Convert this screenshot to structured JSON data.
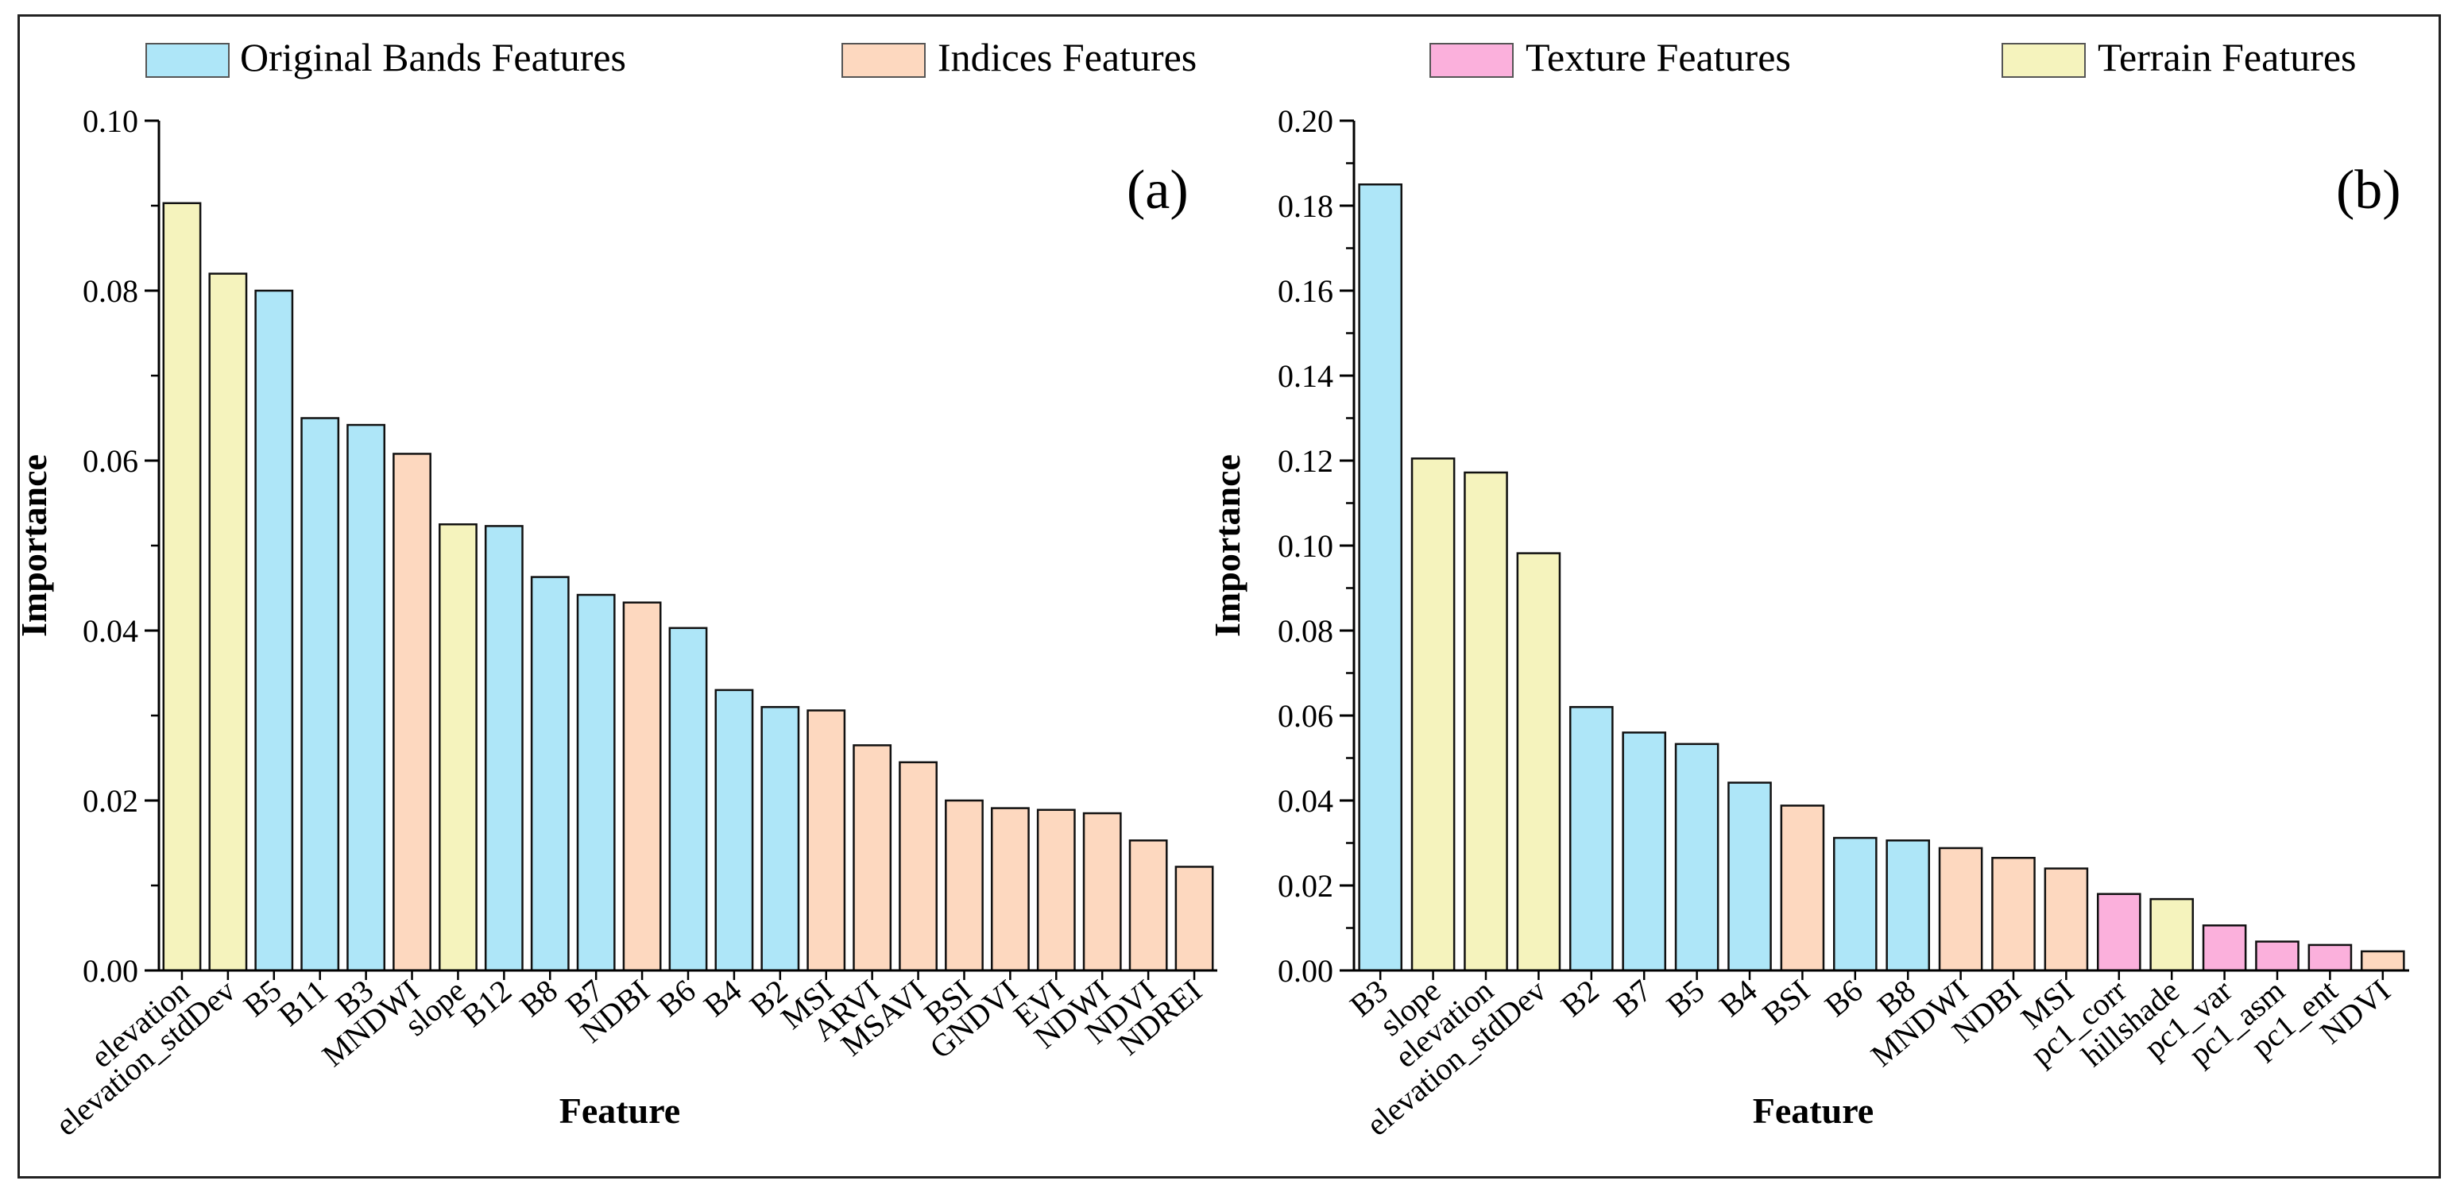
{
  "figure": {
    "categories": {
      "original": {
        "label": "Original Bands Features",
        "color": "#aee6f8"
      },
      "indices": {
        "label": "Indices Features",
        "color": "#fdd8bf"
      },
      "texture": {
        "label": "Texture Features",
        "color": "#fbb0dc"
      },
      "terrain": {
        "label": "Terrain Features",
        "color": "#f5f3bd"
      }
    },
    "legend_order": [
      "original",
      "indices",
      "texture",
      "terrain"
    ]
  },
  "chart_data": [
    {
      "type": "bar",
      "panel_label": "(a)",
      "xlabel": "Feature",
      "ylabel": "Importance",
      "ylim": [
        0,
        0.1
      ],
      "yticks": [
        "0.00",
        "0.02",
        "0.04",
        "0.06",
        "0.08",
        "0.10"
      ],
      "yticks_values": [
        0,
        0.02,
        0.04,
        0.06,
        0.08,
        0.1
      ],
      "categories": [
        "elevation",
        "elevation_stdDev",
        "B5",
        "B11",
        "B3",
        "MNDWI",
        "slope",
        "B12",
        "B8",
        "B7",
        "NDBI",
        "B6",
        "B4",
        "B2",
        "MSI",
        "ARVI",
        "MSAVI",
        "BSI",
        "GNDVI",
        "EVI",
        "NDWI",
        "NDVI",
        "NDREI"
      ],
      "values": [
        0.0903,
        0.082,
        0.08,
        0.065,
        0.0642,
        0.0608,
        0.0525,
        0.0523,
        0.0463,
        0.0442,
        0.0433,
        0.0403,
        0.033,
        0.031,
        0.0306,
        0.0265,
        0.0245,
        0.02,
        0.0191,
        0.0189,
        0.0185,
        0.0153,
        0.0122
      ],
      "groups": [
        "terrain",
        "terrain",
        "original",
        "original",
        "original",
        "indices",
        "terrain",
        "original",
        "original",
        "original",
        "indices",
        "original",
        "original",
        "original",
        "indices",
        "indices",
        "indices",
        "indices",
        "indices",
        "indices",
        "indices",
        "indices",
        "indices"
      ]
    },
    {
      "type": "bar",
      "panel_label": "(b)",
      "xlabel": "Feature",
      "ylabel": "Importance",
      "ylim": [
        0,
        0.2
      ],
      "yticks": [
        "0.00",
        "0.02",
        "0.04",
        "0.06",
        "0.08",
        "0.10",
        "0.12",
        "0.14",
        "0.16",
        "0.18",
        "0.20"
      ],
      "yticks_values": [
        0,
        0.02,
        0.04,
        0.06,
        0.08,
        0.1,
        0.12,
        0.14,
        0.16,
        0.18,
        0.2
      ],
      "categories": [
        "B3",
        "slope",
        "elevation",
        "elevation_stdDev",
        "B2",
        "B7",
        "B5",
        "B4",
        "BSI",
        "B6",
        "B8",
        "MNDWI",
        "NDBI",
        "MSI",
        "pc1_corr",
        "hillshade",
        "pc1_var",
        "pc1_asm",
        "pc1_ent",
        "NDVI"
      ],
      "values": [
        0.185,
        0.1205,
        0.1172,
        0.0982,
        0.062,
        0.056,
        0.0533,
        0.0442,
        0.0388,
        0.0312,
        0.0306,
        0.0288,
        0.0265,
        0.024,
        0.018,
        0.0168,
        0.0106,
        0.0068,
        0.006,
        0.0045
      ],
      "groups": [
        "original",
        "terrain",
        "terrain",
        "terrain",
        "original",
        "original",
        "original",
        "original",
        "indices",
        "original",
        "original",
        "indices",
        "indices",
        "indices",
        "texture",
        "terrain",
        "texture",
        "texture",
        "texture",
        "indices"
      ]
    }
  ]
}
